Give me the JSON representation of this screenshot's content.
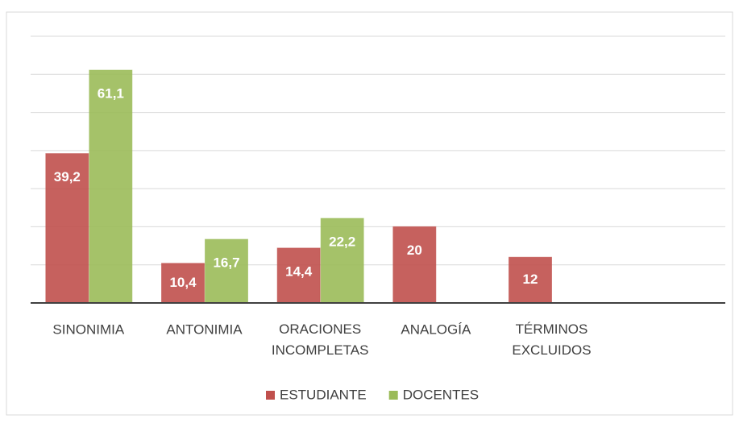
{
  "chart_data": {
    "type": "bar",
    "categories": [
      "SINONIMIA",
      "ANTONIMIA",
      "ORACIONES INCOMPLETAS",
      "ANALOGÍA",
      "TÉRMINOS EXCLUIDOS",
      null
    ],
    "series": [
      {
        "name": "ESTUDIANTE",
        "color": "#c0504d",
        "values": [
          39.2,
          10.4,
          14.4,
          20,
          12,
          null
        ],
        "value_labels": [
          "39,2",
          "10,4",
          "14,4",
          "20",
          "12",
          null
        ]
      },
      {
        "name": "DOCENTES",
        "color": "#9bbb59",
        "values": [
          61.1,
          16.7,
          22.2,
          null,
          null,
          null
        ],
        "value_labels": [
          "61,1",
          "16,7",
          "22,2",
          null,
          null,
          null
        ]
      }
    ],
    "ylim": [
      0,
      70
    ],
    "yticks": [
      0,
      10,
      20,
      30,
      40,
      50,
      60,
      70
    ],
    "grid": true,
    "legend": "bottom"
  }
}
